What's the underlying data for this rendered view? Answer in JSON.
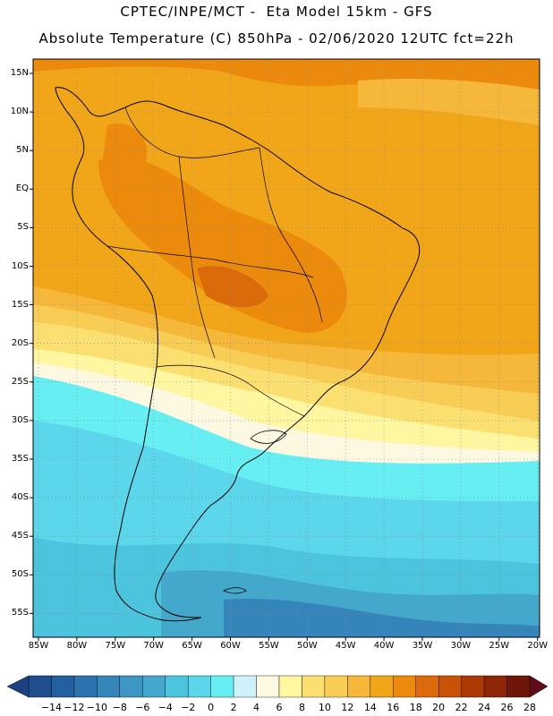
{
  "header": {
    "line1": "CPTEC/INPE/MCT -  Eta Model 15km - GFS",
    "line2": "Absolute Temperature (C) 850hPa - 02/06/2020 12UTC fct=22h"
  },
  "map": {
    "name": "South America",
    "lat_labels": [
      "15N",
      "10N",
      "5N",
      "EQ",
      "5S",
      "10S",
      "15S",
      "20S",
      "25S",
      "30S",
      "35S",
      "40S",
      "45S",
      "50S",
      "55S"
    ],
    "lon_labels": [
      "85W",
      "80W",
      "75W",
      "70W",
      "65W",
      "60W",
      "55W",
      "50W",
      "45W",
      "40W",
      "35W",
      "30W",
      "25W",
      "20W"
    ]
  },
  "colorbar": {
    "labels": [
      "-14",
      "-12",
      "-10",
      "-8",
      "-6",
      "-4",
      "-2",
      "0",
      "2",
      "4",
      "6",
      "8",
      "10",
      "12",
      "14",
      "16",
      "18",
      "20",
      "22",
      "24",
      "26",
      "28"
    ],
    "colors": [
      "#1f4e8f",
      "#23609f",
      "#2c72ae",
      "#3584ba",
      "#3d96c3",
      "#44a8cc",
      "#4cc4de",
      "#5cd6ea",
      "#66eef2",
      "#cdf2fb",
      "#fdf8e1",
      "#fef6a0",
      "#fbe071",
      "#f8cd55",
      "#f5b83a",
      "#f1a519",
      "#eb8a0d",
      "#db6a0a",
      "#c75208",
      "#ab3a07",
      "#8d2707",
      "#6e1708"
    ]
  }
}
